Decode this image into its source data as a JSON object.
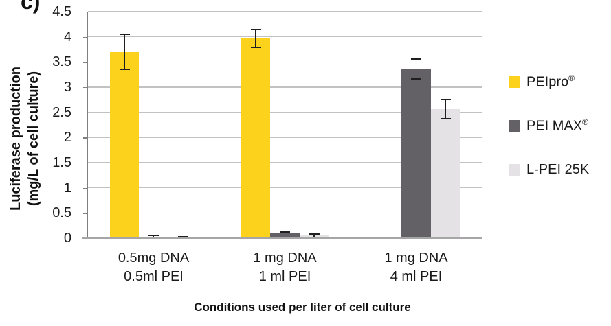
{
  "figure_label": "c)",
  "y_axis": {
    "title_line1": "Luciferase production",
    "title_line2": "(mg/L of cell culture)"
  },
  "x_axis": {
    "title": "Conditions used per liter of cell culture"
  },
  "chart_data": {
    "type": "bar",
    "title": "",
    "xlabel": "Conditions used per liter of cell culture",
    "ylabel": "Luciferase production (mg/L of cell culture)",
    "ylim": [
      0,
      4.5
    ],
    "ytick_step": 0.5,
    "y_tick_labels": [
      "0",
      "0.5",
      "1",
      "1.5",
      "2",
      "2.5",
      "3",
      "3.5",
      "4",
      "4.5"
    ],
    "grid": true,
    "legend_position": "right",
    "categories": [
      "0.5mg DNA 0.5ml PEI",
      "1 mg DNA 1 ml PEI",
      "1 mg DNA 4 ml PEI"
    ],
    "category_lines": [
      [
        "0.5mg DNA",
        "0.5ml PEI"
      ],
      [
        "1 mg DNA",
        "1 ml PEI"
      ],
      [
        "1 mg DNA",
        "4 ml PEI"
      ]
    ],
    "series": [
      {
        "name": "PEIpro®",
        "color": "#FCD21C",
        "values": [
          3.7,
          3.97,
          0.01
        ],
        "errors": [
          0.35,
          0.18,
          0
        ]
      },
      {
        "name": "PEI MAX®",
        "color": "#636066",
        "values": [
          0.03,
          0.09,
          3.36
        ],
        "errors": [
          0.02,
          0.03,
          0.2
        ]
      },
      {
        "name": "L-PEI 25K",
        "color": "#E5E2E6",
        "values": [
          0.02,
          0.05,
          2.57
        ],
        "errors": [
          0.01,
          0.03,
          0.19
        ]
      }
    ]
  },
  "colors": {
    "gridline": "#C2C2C2",
    "y_axis_line": "#7F7F7F",
    "x_axis_line": "#A6A6A6",
    "error_bar": "#1F1F1F",
    "text": "#1A1A1A"
  }
}
